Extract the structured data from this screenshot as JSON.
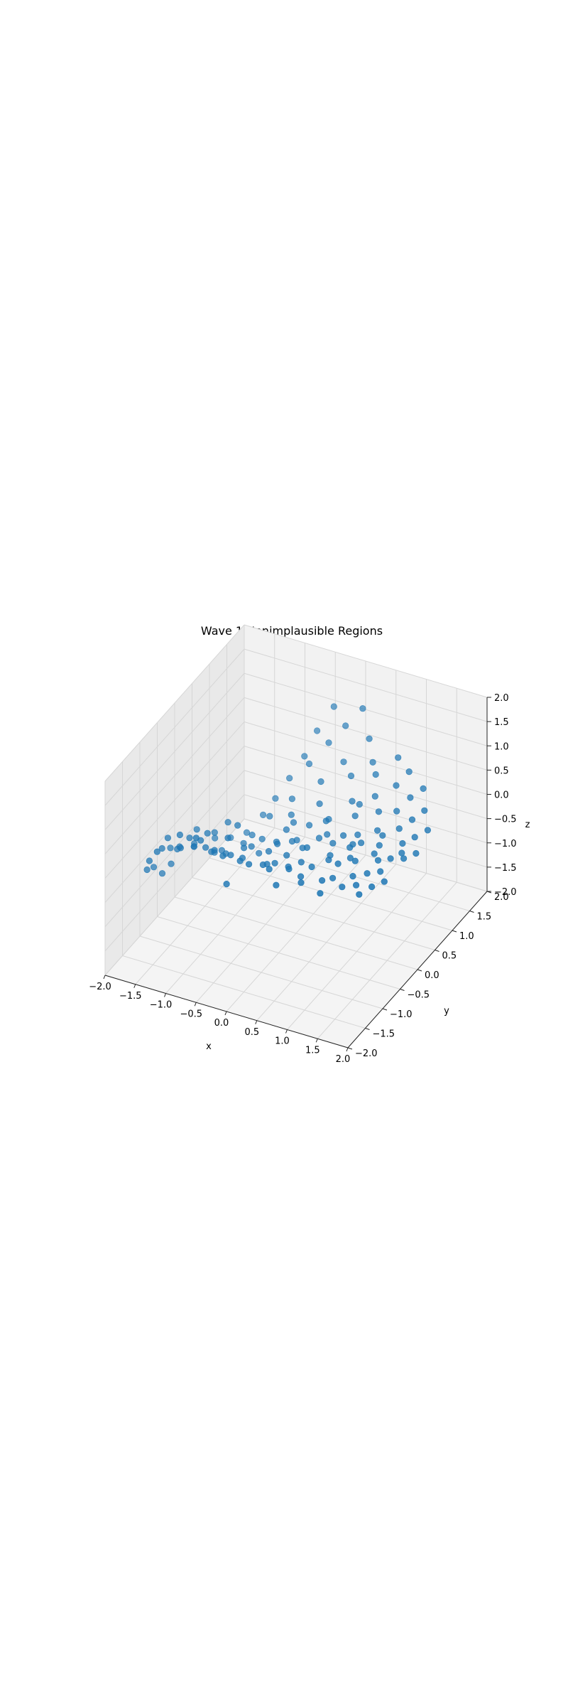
{
  "chart_data": {
    "type": "scatter",
    "projection": "3d",
    "title": "Wave 1 Nonimplausible Regions",
    "xlabel": "x",
    "ylabel": "y",
    "zlabel": "z",
    "xlim": [
      -2.0,
      2.0
    ],
    "ylim": [
      -2.0,
      2.0
    ],
    "zlim": [
      -2.0,
      2.0
    ],
    "xticks": [
      "−2.0",
      "−1.5",
      "−1.0",
      "−0.5",
      "0.0",
      "0.5",
      "1.0",
      "1.5",
      "2.0"
    ],
    "yticks": [
      "−2.0",
      "−1.5",
      "−1.0",
      "−0.5",
      "0.0",
      "0.5",
      "1.0",
      "1.5",
      "2.0"
    ],
    "zticks": [
      "−2.0",
      "−1.5",
      "−1.0",
      "−0.5",
      "0.0",
      "0.5",
      "1.0",
      "1.5",
      "2.0"
    ],
    "grid": true,
    "colors": {
      "marker": "#1f77b4",
      "pane_back": "#f2f2f2",
      "pane_side": "#e9e9e9",
      "pane_floor": "#f4f4f4",
      "grid": "#d6d6d6"
    },
    "series": [
      {
        "points": [
          [
            -1.76,
            -1.02,
            -0.47
          ],
          [
            -1.71,
            -1.3,
            -0.28
          ],
          [
            -1.66,
            -0.95,
            -0.62
          ],
          [
            -1.62,
            -0.52,
            -0.4
          ],
          [
            -1.58,
            -1.46,
            0.08
          ],
          [
            -1.55,
            -0.22,
            -0.55
          ],
          [
            -1.51,
            -0.78,
            -0.2
          ],
          [
            -1.47,
            -1.12,
            0.32
          ],
          [
            -1.44,
            0.18,
            -0.72
          ],
          [
            -1.4,
            -0.41,
            -0.05
          ],
          [
            -1.36,
            -1.62,
            0.48
          ],
          [
            -1.33,
            0.44,
            -0.88
          ],
          [
            -1.29,
            -0.09,
            -0.33
          ],
          [
            -1.25,
            -0.88,
            0.21
          ],
          [
            -1.22,
            0.71,
            -0.95
          ],
          [
            -1.18,
            -1.28,
            0.62
          ],
          [
            -1.15,
            0.05,
            -0.18
          ],
          [
            -1.11,
            -0.61,
            0.14
          ],
          [
            -1.07,
            0.92,
            -0.7
          ],
          [
            -1.04,
            -0.32,
            -0.42
          ],
          [
            -1.0,
            1.15,
            -0.52
          ],
          [
            -0.97,
            -1.05,
            0.4
          ],
          [
            -0.93,
            0.36,
            -0.61
          ],
          [
            -0.9,
            1.38,
            -0.25
          ],
          [
            -0.86,
            -0.18,
            0.05
          ],
          [
            -0.82,
            -1.44,
            0.82
          ],
          [
            -0.79,
            0.62,
            -0.38
          ],
          [
            -0.75,
            1.55,
            0.12
          ],
          [
            -0.71,
            -0.72,
            0.28
          ],
          [
            -0.68,
            0.12,
            -0.7
          ],
          [
            -0.64,
            1.72,
            0.55
          ],
          [
            -0.6,
            -0.45,
            -0.1
          ],
          [
            -0.57,
            0.88,
            -0.15
          ],
          [
            -0.53,
            -1.18,
            0.35
          ],
          [
            -0.5,
            1.25,
            0.3
          ],
          [
            -0.46,
            0.24,
            -0.48
          ],
          [
            -0.42,
            1.82,
            1.05
          ],
          [
            -0.39,
            -0.86,
            0.1
          ],
          [
            -0.35,
            0.54,
            -0.28
          ],
          [
            -0.31,
            1.48,
            0.62
          ],
          [
            -0.28,
            -0.05,
            -0.22
          ],
          [
            -0.24,
            -1.58,
            0.2
          ],
          [
            -0.21,
            1.08,
            0.18
          ],
          [
            -0.17,
            0.32,
            -0.4
          ],
          [
            -0.13,
            1.65,
            0.9
          ],
          [
            -0.1,
            -0.66,
            -0.08
          ],
          [
            -0.06,
            0.78,
            0.02
          ],
          [
            -0.02,
            -1.32,
            0.48
          ],
          [
            0.01,
            1.35,
            0.45
          ],
          [
            0.05,
            0.1,
            -0.3
          ],
          [
            0.09,
            1.76,
            1.25
          ],
          [
            0.12,
            -0.48,
            0.04
          ],
          [
            0.16,
            0.66,
            -0.12
          ],
          [
            0.2,
            -1.12,
            0.3
          ],
          [
            0.23,
            1.18,
            0.38
          ],
          [
            0.27,
            0.42,
            -0.2
          ],
          [
            0.3,
            1.58,
            0.85
          ],
          [
            0.34,
            -0.28,
            0.12
          ],
          [
            0.38,
            0.95,
            0.1
          ],
          [
            0.41,
            -0.92,
            0.22
          ],
          [
            0.45,
            1.42,
            0.55
          ],
          [
            0.48,
            0.22,
            -0.14
          ],
          [
            0.52,
            -1.48,
            0.38
          ],
          [
            0.56,
            0.72,
            0.05
          ],
          [
            0.59,
            1.26,
            0.48
          ],
          [
            0.63,
            -0.12,
            -0.06
          ],
          [
            0.66,
            -0.7,
            0.18
          ],
          [
            0.7,
            1.05,
            0.24
          ],
          [
            0.74,
            0.48,
            -0.08
          ],
          [
            0.77,
            -1.2,
            0.3
          ],
          [
            0.81,
            1.52,
            0.7
          ],
          [
            0.84,
            0.08,
            0.02
          ],
          [
            0.88,
            0.84,
            0.16
          ],
          [
            0.92,
            -0.4,
            0.1
          ],
          [
            0.95,
            1.22,
            0.42
          ],
          [
            0.99,
            -0.98,
            0.25
          ],
          [
            1.02,
            0.56,
            0.05
          ],
          [
            1.06,
            1.4,
            0.6
          ],
          [
            1.1,
            -0.22,
            0.08
          ],
          [
            1.13,
            0.92,
            0.2
          ],
          [
            1.17,
            -1.35,
            0.35
          ],
          [
            1.2,
            0.3,
            0.02
          ],
          [
            1.24,
            1.12,
            0.36
          ],
          [
            1.28,
            -0.6,
            0.14
          ],
          [
            1.31,
            0.68,
            0.1
          ],
          [
            1.35,
            1.3,
            0.44
          ],
          [
            1.38,
            -0.05,
            0.06
          ],
          [
            1.42,
            0.86,
            0.18
          ],
          [
            1.46,
            -0.82,
            0.2
          ],
          [
            1.49,
            0.46,
            0.04
          ],
          [
            1.53,
            1.02,
            0.28
          ],
          [
            1.56,
            -0.3,
            0.1
          ],
          [
            1.6,
            0.62,
            0.08
          ],
          [
            1.64,
            -1.05,
            0.26
          ],
          [
            1.67,
            0.18,
            0.02
          ],
          [
            1.71,
            0.8,
            0.12
          ],
          [
            1.74,
            -0.5,
            0.12
          ],
          [
            1.78,
            0.34,
            0.04
          ],
          [
            -1.68,
            -0.68,
            -0.32
          ],
          [
            -1.52,
            -1.2,
            0.15
          ],
          [
            -1.35,
            -0.58,
            -0.25
          ],
          [
            -1.2,
            -0.25,
            -0.58
          ],
          [
            -1.02,
            -0.82,
            0.05
          ],
          [
            -0.88,
            -0.48,
            -0.3
          ],
          [
            -0.72,
            0.28,
            -0.55
          ],
          [
            -0.55,
            -0.92,
            0.15
          ],
          [
            -0.4,
            0.42,
            -0.35
          ],
          [
            -0.25,
            -0.35,
            -0.12
          ],
          [
            -0.08,
            0.52,
            -0.22
          ],
          [
            0.08,
            -0.75,
            0.08
          ],
          [
            0.22,
            0.28,
            -0.18
          ],
          [
            0.4,
            -0.55,
            0.06
          ],
          [
            0.55,
            0.4,
            -0.1
          ],
          [
            0.72,
            -0.32,
            0.04
          ],
          [
            0.9,
            0.3,
            -0.04
          ],
          [
            1.05,
            -0.78,
            0.16
          ],
          [
            1.22,
            0.12,
            0.0
          ],
          [
            1.4,
            -0.4,
            0.08
          ],
          [
            1.58,
            0.28,
            0.02
          ],
          [
            -1.6,
            -0.8,
            -0.52
          ],
          [
            -1.48,
            -0.35,
            -0.48
          ],
          [
            -1.3,
            -1.05,
            0.12
          ],
          [
            -1.12,
            -0.48,
            -0.35
          ],
          [
            -0.95,
            0.15,
            -0.62
          ],
          [
            -0.8,
            -0.95,
            0.18
          ],
          [
            -0.62,
            -0.2,
            -0.28
          ],
          [
            -0.48,
            0.7,
            -0.3
          ],
          [
            -0.32,
            -1.05,
            0.22
          ],
          [
            -0.15,
            0.15,
            -0.28
          ],
          [
            0.0,
            -0.95,
            0.18
          ],
          [
            0.18,
            0.55,
            -0.06
          ],
          [
            0.32,
            -0.78,
            0.12
          ],
          [
            0.5,
            0.95,
            0.08
          ],
          [
            0.65,
            -1.0,
            0.22
          ],
          [
            0.82,
            0.2,
            -0.02
          ],
          [
            0.98,
            -0.15,
            0.04
          ],
          [
            1.15,
            0.48,
            0.06
          ],
          [
            1.32,
            -0.98,
            0.24
          ],
          [
            1.5,
            0.1,
            0.02
          ],
          [
            1.66,
            -0.72,
            0.16
          ]
        ]
      }
    ]
  }
}
